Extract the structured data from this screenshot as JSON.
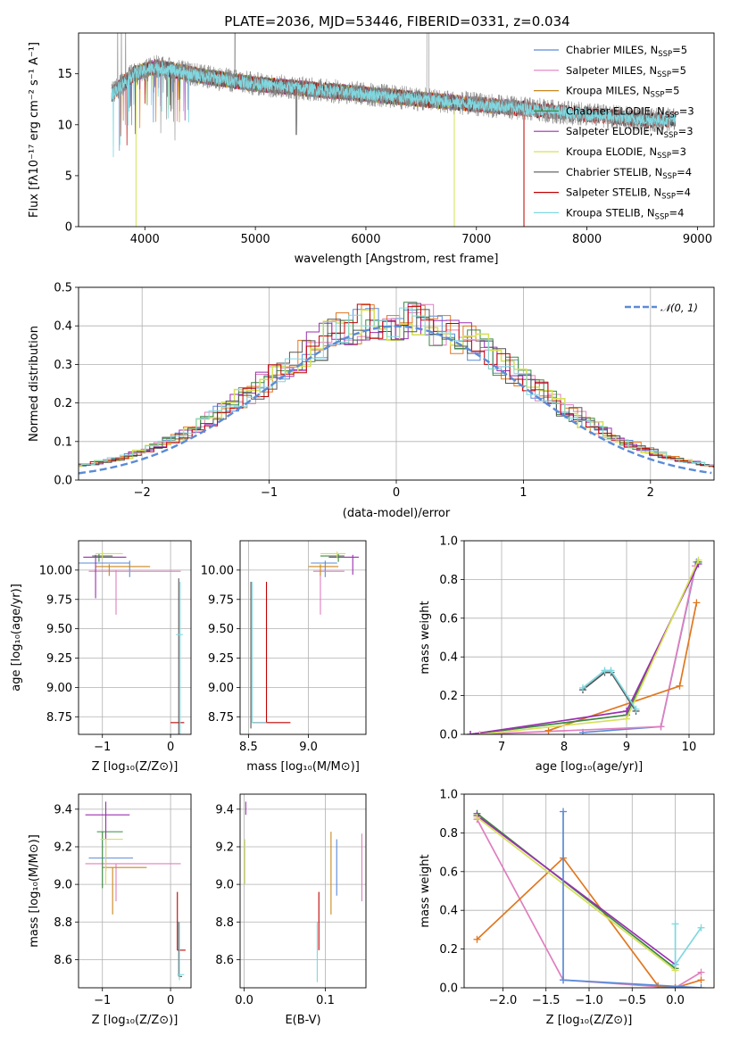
{
  "figure_title": "PLATE=2036, MJD=53446, FIBERID=0331, z=0.034",
  "colors": {
    "Chabrier MILES": "#5b8bd6",
    "Salpeter MILES": "#e07fbf",
    "Kroupa MILES": "#c8871e",
    "Chabrier ELODIE": "#3a8a40",
    "Salpeter ELODIE": "#9b2fb0",
    "Kroupa ELODIE": "#d6e05a",
    "Chabrier STELIB": "#555555",
    "Salpeter STELIB": "#c00000",
    "Kroupa STELIB": "#7fd8e0",
    "orange": "#e07820",
    "data": "#888888",
    "gaussian": "#5b8bd6"
  },
  "chart_data": [
    {
      "id": "spectrum",
      "type": "line",
      "xlabel": "wavelength [Angstrom, rest frame]",
      "ylabel": "Flux [f$_\\lambda$10$^{-17}$ erg cm$^{-2}$ s$^{-1}$ A$^{-1}$]",
      "ylabel_display": "Flux [fλ10⁻¹⁷ erg cm⁻² s⁻¹ A⁻¹]",
      "xlim": [
        3400,
        9150
      ],
      "ylim": [
        0,
        19
      ],
      "xticks": [
        4000,
        5000,
        6000,
        7000,
        8000,
        9000
      ],
      "yticks": [
        0,
        5,
        10,
        15
      ],
      "grid": false,
      "legend_position": "top-right",
      "legend": [
        {
          "name": "Chabrier MILES",
          "nssp": "5"
        },
        {
          "name": "Salpeter MILES",
          "nssp": "5"
        },
        {
          "name": "Kroupa MILES",
          "nssp": "5"
        },
        {
          "name": "Chabrier ELODIE",
          "nssp": "3"
        },
        {
          "name": "Salpeter ELODIE",
          "nssp": "3"
        },
        {
          "name": "Kroupa ELODIE",
          "nssp": "3"
        },
        {
          "name": "Chabrier STELIB",
          "nssp": "4"
        },
        {
          "name": "Salpeter STELIB",
          "nssp": "4"
        },
        {
          "name": "Kroupa STELIB",
          "nssp": "4"
        }
      ],
      "continuum_profile": [
        [
          3700,
          13
        ],
        [
          3900,
          15
        ],
        [
          4100,
          15.7
        ],
        [
          4500,
          14.8
        ],
        [
          5000,
          14
        ],
        [
          5500,
          13.5
        ],
        [
          6000,
          13
        ],
        [
          6500,
          12.5
        ],
        [
          7000,
          12
        ],
        [
          7500,
          11.5
        ],
        [
          8000,
          11
        ],
        [
          8500,
          10.5
        ],
        [
          8800,
          10.5
        ]
      ],
      "model_coverage": {
        "MILES": [
          3700,
          7430
        ],
        "ELODIE": [
          3900,
          6800
        ],
        "STELIB": [
          3700,
          8800
        ]
      }
    },
    {
      "id": "residuals",
      "type": "histogram",
      "xlabel": "(data-model)/error",
      "ylabel": "Normed distribution",
      "xlim": [
        -2.5,
        2.5
      ],
      "ylim": [
        0,
        0.5
      ],
      "xticks": [
        -2,
        -1,
        0,
        1,
        2
      ],
      "yticks": [
        0.0,
        0.1,
        0.2,
        0.3,
        0.4,
        0.5
      ],
      "grid": true,
      "legend": [
        "$\\mathcal{N}(0,1)$"
      ],
      "legend_display": "𝒩(0, 1)",
      "legend_position": "top-right",
      "bin_width": 0.1
    },
    {
      "id": "age-vs-Z",
      "type": "errorbar",
      "xlabel": "Z [log$_{10}$(Z/Z$_\\odot$)]",
      "ylabel": "age  [log$_{10}$(age/yr)]",
      "xlim": [
        -1.35,
        0.3
      ],
      "ylim": [
        8.6,
        10.25
      ],
      "xticks": [
        -1,
        0
      ],
      "yticks": [
        8.75,
        9.0,
        9.25,
        9.5,
        9.75,
        10.0
      ],
      "grid": true,
      "points": [
        {
          "model": "Chabrier MILES",
          "x": -0.6,
          "y": 10.06,
          "xerr": [
            0.9,
            0.0
          ],
          "yerr": [
            0.12,
            0.02
          ]
        },
        {
          "model": "Salpeter MILES",
          "x": -0.8,
          "y": 9.99,
          "xerr": [
            0.4,
            0.95
          ],
          "yerr": [
            0.37,
            0.01
          ]
        },
        {
          "model": "Kroupa MILES",
          "x": -0.9,
          "y": 10.03,
          "xerr": [
            0.2,
            0.6
          ],
          "yerr": [
            0.08,
            0.02
          ]
        },
        {
          "model": "Chabrier ELODIE",
          "x": -1.05,
          "y": 10.12,
          "xerr": [
            0.1,
            0.2
          ],
          "yerr": [
            0.05,
            0.02
          ]
        },
        {
          "model": "Salpeter ELODIE",
          "x": -1.1,
          "y": 10.11,
          "xerr": [
            0.18,
            0.45
          ],
          "yerr": [
            0.35,
            0.02
          ]
        },
        {
          "model": "Kroupa ELODIE",
          "x": -1.0,
          "y": 10.14,
          "xerr": [
            0.1,
            0.3
          ],
          "yerr": [
            0.04,
            0.02
          ]
        },
        {
          "model": "Salpeter STELIB",
          "x": 0.0,
          "y": 8.7,
          "xerr": [
            0.0,
            0.2
          ],
          "yerr": [
            0.0,
            0.0
          ]
        },
        {
          "model": "Chabrier STELIB",
          "x": 0.12,
          "y": 9.45,
          "xerr": [
            0.0,
            0.0
          ],
          "yerr": [
            0.85,
            0.48
          ]
        },
        {
          "model": "Kroupa STELIB",
          "x": 0.14,
          "y": 9.45,
          "xerr": [
            0.06,
            0.04
          ],
          "yerr": [
            0.85,
            0.45
          ]
        }
      ]
    },
    {
      "id": "age-vs-mass",
      "type": "errorbar",
      "xlabel": "mass [log$_{10}$(M/M$_\\odot$)]",
      "ylabel": "",
      "xlim": [
        8.43,
        9.48
      ],
      "ylim": [
        8.6,
        10.25
      ],
      "xticks": [
        8.5,
        9.0
      ],
      "yticks": [
        8.75,
        9.0,
        9.25,
        9.5,
        9.75,
        10.0
      ],
      "grid": true,
      "points": [
        {
          "model": "Chabrier MILES",
          "x": 9.14,
          "y": 10.06,
          "xerr": [
            0.12,
            0.1
          ],
          "yerr": [
            0.12,
            0.02
          ]
        },
        {
          "model": "Salpeter MILES",
          "x": 9.1,
          "y": 9.99,
          "xerr": [
            0.06,
            0.2
          ],
          "yerr": [
            0.37,
            0.01
          ]
        },
        {
          "model": "Kroupa MILES",
          "x": 9.1,
          "y": 10.03,
          "xerr": [
            0.1,
            0.15
          ],
          "yerr": [
            0.08,
            0.02
          ]
        },
        {
          "model": "Chabrier ELODIE",
          "x": 9.25,
          "y": 10.12,
          "xerr": [
            0.15,
            0.05
          ],
          "yerr": [
            0.05,
            0.02
          ]
        },
        {
          "model": "Salpeter ELODIE",
          "x": 9.37,
          "y": 10.11,
          "xerr": [
            0.2,
            0.05
          ],
          "yerr": [
            0.15,
            0.02
          ]
        },
        {
          "model": "Kroupa ELODIE",
          "x": 9.24,
          "y": 10.14,
          "xerr": [
            0.14,
            0.07
          ],
          "yerr": [
            0.04,
            0.02
          ]
        },
        {
          "model": "Salpeter STELIB",
          "x": 8.65,
          "y": 8.7,
          "xerr": [
            0.12,
            0.2
          ],
          "yerr": [
            0.0,
            1.2
          ]
        },
        {
          "model": "Chabrier STELIB",
          "x": 8.52,
          "y": 9.3,
          "xerr": [
            0.0,
            0.0
          ],
          "yerr": [
            0.65,
            0.6
          ]
        },
        {
          "model": "Kroupa STELIB",
          "x": 8.53,
          "y": 8.7,
          "xerr": [
            0.0,
            0.12
          ],
          "yerr": [
            0.0,
            1.2
          ]
        }
      ]
    },
    {
      "id": "massweight-vs-age",
      "type": "line",
      "xlabel": "age  [log$_{10}$(age/yr)]",
      "ylabel": "mass weight",
      "xlim": [
        6.4,
        10.4
      ],
      "ylim": [
        0,
        1.0
      ],
      "xticks": [
        7,
        8,
        9,
        10
      ],
      "yticks": [
        0.0,
        0.2,
        0.4,
        0.6,
        0.8,
        1.0
      ],
      "grid": true,
      "series": [
        {
          "model": "Chabrier MILES",
          "x": [
            8.3,
            9.55,
            10.12
          ],
          "y": [
            0.01,
            0.04,
            0.89
          ]
        },
        {
          "model": "Salpeter MILES",
          "x": [
            6.65,
            9.55,
            10.1
          ],
          "y": [
            0.0,
            0.04,
            0.87
          ]
        },
        {
          "model": "orange",
          "x": [
            7.75,
            9.85,
            10.12
          ],
          "y": [
            0.02,
            0.25,
            0.68
          ]
        },
        {
          "model": "Chabrier ELODIE",
          "x": [
            6.5,
            9.0,
            10.15
          ],
          "y": [
            0.0,
            0.1,
            0.89
          ]
        },
        {
          "model": "Salpeter ELODIE",
          "x": [
            6.5,
            9.0,
            10.15
          ],
          "y": [
            0.0,
            0.12,
            0.88
          ]
        },
        {
          "model": "Kroupa ELODIE",
          "x": [
            6.65,
            9.0,
            10.15
          ],
          "y": [
            0.0,
            0.08,
            0.9
          ]
        },
        {
          "model": "Chabrier STELIB",
          "x": [
            8.3,
            8.65,
            8.75,
            9.15
          ],
          "y": [
            0.23,
            0.32,
            0.32,
            0.12
          ]
        },
        {
          "model": "Kroupa STELIB",
          "x": [
            8.3,
            8.65,
            8.75,
            9.15
          ],
          "y": [
            0.24,
            0.33,
            0.33,
            0.13
          ]
        }
      ]
    },
    {
      "id": "mass-vs-Z",
      "type": "errorbar",
      "xlabel": "Z [log$_{10}$(Z/Z$_\\odot$)]",
      "ylabel": "mass [log$_{10}$(M/M$_\\odot$)]",
      "xlim": [
        -1.35,
        0.3
      ],
      "ylim": [
        8.45,
        9.48
      ],
      "xticks": [
        -1,
        0
      ],
      "yticks": [
        8.6,
        8.8,
        9.0,
        9.2,
        9.4
      ],
      "grid": true,
      "points": [
        {
          "model": "Chabrier MILES",
          "x": -0.55,
          "y": 9.14,
          "xerr": [
            0.65,
            0.0
          ],
          "yerr": [
            0.0,
            0.0
          ]
        },
        {
          "model": "Salpeter MILES",
          "x": -0.8,
          "y": 9.11,
          "xerr": [
            0.45,
            0.95
          ],
          "yerr": [
            0.2,
            0.0
          ]
        },
        {
          "model": "Kroupa MILES",
          "x": -0.85,
          "y": 9.09,
          "xerr": [
            0.15,
            0.5
          ],
          "yerr": [
            0.25,
            0.0
          ]
        },
        {
          "model": "Chabrier ELODIE",
          "x": -1.0,
          "y": 9.28,
          "xerr": [
            0.08,
            0.3
          ],
          "yerr": [
            0.3,
            0.0
          ]
        },
        {
          "model": "Salpeter ELODIE",
          "x": -0.95,
          "y": 9.37,
          "xerr": [
            0.3,
            0.35
          ],
          "yerr": [
            0.3,
            0.07
          ]
        },
        {
          "model": "Kroupa ELODIE",
          "x": -0.95,
          "y": 9.24,
          "xerr": [
            0.08,
            0.25
          ],
          "yerr": [
            0.24,
            0.0
          ]
        },
        {
          "model": "Salpeter STELIB",
          "x": 0.1,
          "y": 8.65,
          "xerr": [
            0.0,
            0.12
          ],
          "yerr": [
            0.0,
            0.31
          ]
        },
        {
          "model": "Chabrier STELIB",
          "x": 0.12,
          "y": 8.51,
          "xerr": [
            0.0,
            0.05
          ],
          "yerr": [
            0.0,
            0.29
          ]
        },
        {
          "model": "Kroupa STELIB",
          "x": 0.13,
          "y": 8.52,
          "xerr": [
            0.03,
            0.07
          ],
          "yerr": [
            0.03,
            0.28
          ]
        }
      ]
    },
    {
      "id": "mass-vs-EBV",
      "type": "errorbar",
      "xlabel": "E(B-V)",
      "ylabel": "",
      "xlim": [
        -0.005,
        0.15
      ],
      "ylim": [
        8.45,
        9.48
      ],
      "xticks": [
        0.0,
        0.1
      ],
      "yticks": [
        8.6,
        8.8,
        9.0,
        9.2,
        9.4
      ],
      "grid": true,
      "points": [
        {
          "model": "Salpeter ELODIE",
          "x": 0.002,
          "y": 9.37,
          "yerr": [
            0.0,
            0.07
          ]
        },
        {
          "model": "Kroupa ELODIE",
          "x": 0.001,
          "y": 9.24,
          "yerr": [
            0.24,
            0.0
          ]
        },
        {
          "model": "Kroupa STELIB",
          "x": 0.09,
          "y": 8.52,
          "yerr": [
            0.04,
            0.28
          ]
        },
        {
          "model": "Salpeter STELIB",
          "x": 0.092,
          "y": 8.65,
          "yerr": [
            0.0,
            0.31
          ]
        },
        {
          "model": "Kroupa MILES",
          "x": 0.107,
          "y": 9.09,
          "yerr": [
            0.25,
            0.19
          ]
        },
        {
          "model": "Chabrier MILES",
          "x": 0.114,
          "y": 9.14,
          "yerr": [
            0.2,
            0.1
          ]
        },
        {
          "model": "Salpeter MILES",
          "x": 0.145,
          "y": 9.11,
          "yerr": [
            0.2,
            0.16
          ]
        }
      ]
    },
    {
      "id": "massweight-vs-Z",
      "type": "line",
      "xlabel": "Z [log$_{10}$(Z/Z$_\\odot$)]",
      "ylabel": "mass weight",
      "xlim": [
        -2.45,
        0.45
      ],
      "ylim": [
        0,
        1.0
      ],
      "xticks": [
        -2.0,
        -1.5,
        -1.0,
        -0.5,
        0.0
      ],
      "yticks": [
        0.0,
        0.2,
        0.4,
        0.6,
        0.8,
        1.0
      ],
      "grid": true,
      "series": [
        {
          "model": "Salpeter MILES",
          "x": [
            -2.3,
            -1.3,
            0.0,
            0.3
          ],
          "y": [
            0.87,
            0.04,
            0.0,
            0.08
          ]
        },
        {
          "model": "orange",
          "x": [
            -2.3,
            -1.3,
            -0.2,
            0.0,
            0.3
          ],
          "y": [
            0.25,
            0.67,
            0.01,
            0.0,
            0.04
          ]
        },
        {
          "model": "Chabrier ELODIE",
          "x": [
            -2.3,
            0.0
          ],
          "y": [
            0.9,
            0.1
          ]
        },
        {
          "model": "Salpeter ELODIE",
          "x": [
            -2.3,
            0.0
          ],
          "y": [
            0.89,
            0.12
          ]
        },
        {
          "model": "Kroupa ELODIE",
          "x": [
            -2.3,
            0.0
          ],
          "y": [
            0.88,
            0.09
          ]
        },
        {
          "model": "Chabrier MILES",
          "x": [
            -1.3,
            -1.3,
            0.3
          ],
          "y": [
            0.91,
            0.04,
            0.0
          ]
        },
        {
          "model": "Kroupa STELIB",
          "x": [
            0.0,
            0.0,
            0.3
          ],
          "y": [
            0.33,
            0.12,
            0.31
          ]
        }
      ]
    }
  ]
}
